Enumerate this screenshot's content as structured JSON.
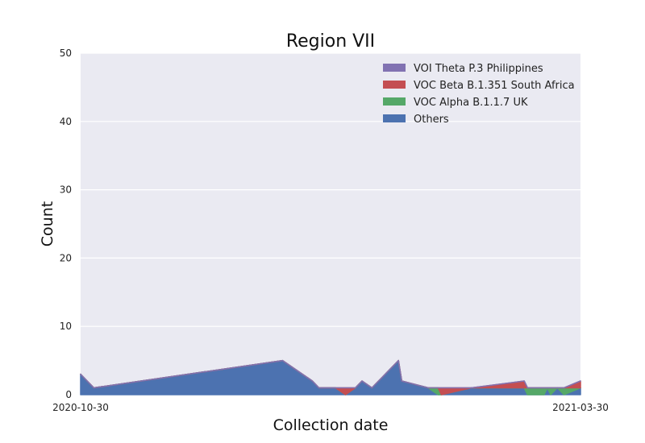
{
  "chart_data": {
    "type": "area",
    "stacked": true,
    "title": "Region VII",
    "xlabel": "Collection date",
    "ylabel": "Count",
    "ylim": [
      0,
      50
    ],
    "y_ticks": [
      0,
      10,
      20,
      30,
      40,
      50
    ],
    "xlim": [
      "2020-10-30",
      "2021-03-30"
    ],
    "x_ticks": [
      "2020-10-30",
      "2021-03-30"
    ],
    "grid": true,
    "legend_position": "top-right",
    "x": [
      "2020-10-30",
      "2020-11-03",
      "2020-12-30",
      "2021-01-08",
      "2021-01-10",
      "2021-01-15",
      "2021-01-18",
      "2021-01-21",
      "2021-01-23",
      "2021-01-26",
      "2021-02-03",
      "2021-02-04",
      "2021-02-12",
      "2021-02-15",
      "2021-02-16",
      "2021-02-25",
      "2021-03-13",
      "2021-03-14",
      "2021-03-19",
      "2021-03-20",
      "2021-03-21",
      "2021-03-23",
      "2021-03-25",
      "2021-03-30"
    ],
    "series": [
      {
        "name": "Others",
        "color": "#4c72b0",
        "values": [
          3,
          1,
          5,
          2,
          1,
          1,
          0,
          1,
          2,
          1,
          5,
          2,
          1,
          0,
          0,
          1,
          1,
          0,
          0,
          1,
          0,
          1,
          0,
          1
        ]
      },
      {
        "name": "VOC Alpha B.1.1.7 UK",
        "color": "#55a868",
        "values": [
          0,
          0,
          0,
          0,
          0,
          0,
          0,
          0,
          0,
          0,
          0,
          0,
          0,
          1,
          0,
          0,
          0,
          1,
          1,
          0,
          1,
          0,
          1,
          0
        ]
      },
      {
        "name": "VOC Beta B.1.351 South Africa",
        "color": "#c44e52",
        "values": [
          0,
          0,
          0,
          0,
          0,
          0,
          1,
          0,
          0,
          0,
          0,
          0,
          0,
          0,
          1,
          0,
          1,
          0,
          0,
          0,
          0,
          0,
          0,
          1
        ]
      },
      {
        "name": "VOI Theta P.3 Philippines",
        "color": "#8172b2",
        "values": [
          0,
          0,
          0,
          0,
          0,
          0,
          0,
          0,
          0,
          0,
          0,
          0,
          0,
          0,
          0,
          0,
          0,
          0,
          0,
          0,
          0,
          0,
          0,
          0
        ]
      }
    ],
    "legend_order": [
      "VOI Theta P.3 Philippines",
      "VOC Beta B.1.351 South Africa",
      "VOC Alpha B.1.1.7 UK",
      "Others"
    ]
  }
}
